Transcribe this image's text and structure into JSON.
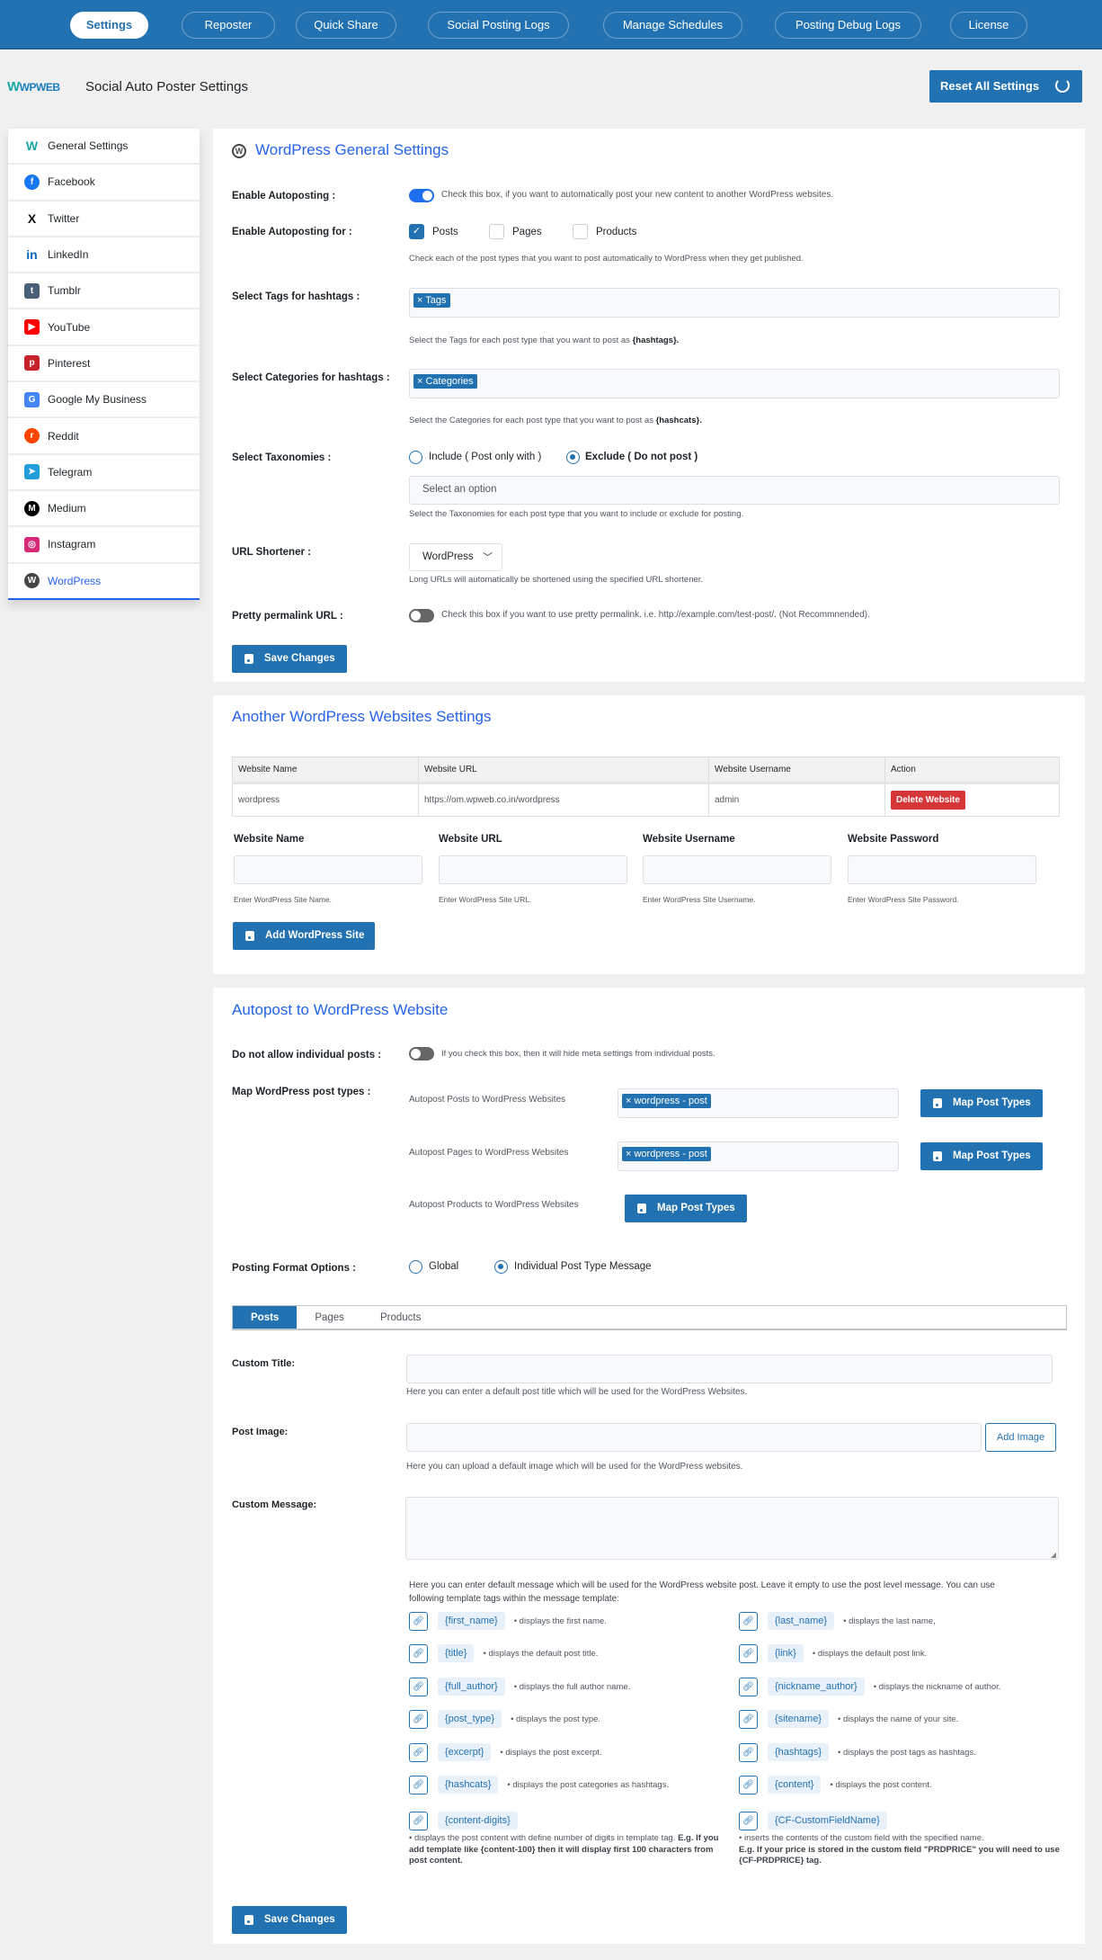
{
  "topnav": {
    "items": [
      "Settings",
      "Reposter",
      "Quick Share",
      "Social Posting Logs",
      "Manage Schedules",
      "Posting Debug Logs",
      "License"
    ],
    "active": "Settings"
  },
  "header": {
    "logo_text": "WPWEB",
    "title": "Social Auto Poster Settings",
    "reset_label": "Reset All Settings"
  },
  "sidebar": {
    "items": [
      {
        "label": "General Settings",
        "icon": "wpweb-logo-icon",
        "color": "#19a7a5",
        "glyph": "W"
      },
      {
        "label": "Facebook",
        "icon": "facebook-icon",
        "color": "#1877f2",
        "glyph": "f"
      },
      {
        "label": "Twitter",
        "icon": "x-twitter-icon",
        "color": "#111111",
        "glyph": "X"
      },
      {
        "label": "LinkedIn",
        "icon": "linkedin-icon",
        "color": "#0a66c2",
        "glyph": "in"
      },
      {
        "label": "Tumblr",
        "icon": "tumblr-icon",
        "color": "#4a6079",
        "glyph": "t"
      },
      {
        "label": "YouTube",
        "icon": "youtube-icon",
        "color": "#ff0000",
        "glyph": "▶"
      },
      {
        "label": "Pinterest",
        "icon": "pinterest-icon",
        "color": "#c8232c",
        "glyph": "p"
      },
      {
        "label": "Google My Business",
        "icon": "google-my-business-icon",
        "color": "#4285f4",
        "glyph": "G"
      },
      {
        "label": "Reddit",
        "icon": "reddit-icon",
        "color": "#ff4500",
        "glyph": "r"
      },
      {
        "label": "Telegram",
        "icon": "telegram-icon",
        "color": "#229ed9",
        "glyph": "➤"
      },
      {
        "label": "Medium",
        "icon": "medium-icon",
        "color": "#000000",
        "glyph": "M"
      },
      {
        "label": "Instagram",
        "icon": "instagram-icon",
        "color": "#d62976",
        "glyph": "◎"
      },
      {
        "label": "WordPress",
        "icon": "wordpress-icon",
        "color": "#464646",
        "glyph": "W"
      }
    ],
    "active": "WordPress"
  },
  "general": {
    "title": "WordPress General Settings",
    "enable_label": "Enable Autoposting :",
    "enable_on": true,
    "enable_desc": "Check this box, if you want to automatically post your new content to another WordPress websites.",
    "enable_for_label": "Enable Autoposting for :",
    "post_types": [
      {
        "label": "Posts",
        "checked": true
      },
      {
        "label": "Pages",
        "checked": false
      },
      {
        "label": "Products",
        "checked": false
      }
    ],
    "enable_for_help": "Check each of the post types that you want to post automatically to WordPress when they get published.",
    "tags_label": "Select Tags for hashtags :",
    "tags_chip": "Tags",
    "tags_help": "Select the Tags for each post type that you want to post as ",
    "tags_help_bold": "{hashtags}.",
    "cats_label": "Select Categories for hashtags :",
    "cats_chip": "Categories",
    "cats_help": "Select the Categories for each post type that you want to post as ",
    "cats_help_bold": "{hashcats}.",
    "tax_label": "Select Taxonomies :",
    "tax_include": "Include ( Post only with )",
    "tax_exclude": "Exclude ( Do not post )",
    "tax_selected": "exclude",
    "tax_placeholder": "Select an option",
    "tax_help": "Select the Taxonomies for each post type that you want to include or exclude for posting.",
    "url_label": "URL Shortener :",
    "url_value": "WordPress",
    "url_help": "Long URLs will automatically be shortened using the specified URL shortener.",
    "pretty_label": "Pretty permalink URL :",
    "pretty_on": false,
    "pretty_desc": "Check this box if you want to use pretty permalink. i.e. http://example.com/test-post/. (Not Recommnended).",
    "save_label": "Save Changes"
  },
  "sites": {
    "title": "Another WordPress Websites Settings",
    "columns": [
      "Website Name",
      "Website URL",
      "Website Username",
      "Action"
    ],
    "rows": [
      {
        "name": "wordpress",
        "url": "https://om.wpweb.co.in/wordpress",
        "username": "admin",
        "action": "Delete Website"
      }
    ],
    "fields": [
      {
        "label": "Website Name",
        "help": "Enter WordPress Site Name.",
        "value": ""
      },
      {
        "label": "Website URL",
        "help": "Enter WordPress Site URL.",
        "value": ""
      },
      {
        "label": "Website Username",
        "help": "Enter WordPress Site Username.",
        "value": ""
      },
      {
        "label": "Website Password",
        "help": "Enter WordPress Site Password.",
        "value": ""
      }
    ],
    "add_label": "Add WordPress Site"
  },
  "autopost": {
    "title": "Autopost to WordPress Website",
    "noindiv_label": "Do not allow individual posts :",
    "noindiv_on": false,
    "noindiv_desc": "If you check this box, then it will hide meta settings from individual posts.",
    "map_label": "Map WordPress post types :",
    "map_rows": [
      {
        "label": "Autopost Posts to WordPress Websites",
        "chip": "wordpress - post"
      },
      {
        "label": "Autopost Pages to WordPress Websites",
        "chip": "wordpress - post"
      },
      {
        "label": "Autopost Products to WordPress Websites"
      }
    ],
    "map_button": "Map Post Types",
    "format_label": "Posting Format Options :",
    "format_global": "Global",
    "format_individual": "Individual Post Type Message",
    "format_selected": "individual",
    "tabs": [
      "Posts",
      "Pages",
      "Products"
    ],
    "active_tab": "Posts",
    "custom_title_label": "Custom Title:",
    "custom_title_value": "",
    "custom_title_help": "Here you can enter a default post title which will be used for the WordPress Websites.",
    "post_image_label": "Post Image:",
    "post_image_value": "",
    "add_image": "Add Image",
    "post_image_help": "Here you can upload a default image which will be used for the WordPress websites.",
    "custom_message_label": "Custom Message:",
    "custom_message_value": "",
    "message_help_1": "Here you can enter default message which will be used for the WordPress website post. Leave it empty to use the post level message. You can use",
    "message_help_2": "following template tags within the message template:",
    "tags_left": [
      {
        "tag": "{first_name}",
        "desc": "displays the first name."
      },
      {
        "tag": "{title}",
        "desc": "displays the default post title."
      },
      {
        "tag": "{full_author}",
        "desc": "displays the full author name."
      },
      {
        "tag": "{post_type}",
        "desc": "displays the post type."
      },
      {
        "tag": "{excerpt}",
        "desc": "displays the post excerpt."
      },
      {
        "tag": "{hashcats}",
        "desc": "displays the post categories as hashtags."
      },
      {
        "tag": "{content-digits}"
      }
    ],
    "tags_right": [
      {
        "tag": "{last_name}",
        "desc": "displays the last name,"
      },
      {
        "tag": "{link}",
        "desc": "displays the default post link."
      },
      {
        "tag": "{nickname_author}",
        "desc": "displays the nickname of author."
      },
      {
        "tag": "{sitename}",
        "desc": "displays the name of your site."
      },
      {
        "tag": "{hashtags}",
        "desc": "displays the post tags as hashtags."
      },
      {
        "tag": "{content}",
        "desc": "displays the post content."
      },
      {
        "tag": "{CF-CustomFieldName}"
      }
    ],
    "content_digits_desc": "displays the post content with define number of digits in template tag. ",
    "content_digits_bold": "E.g. If you add template like {content-100} then it will display first 100 characters from post content.",
    "cf_desc": "inserts the contents of the custom field with the specified name.",
    "cf_bold": "E.g. If your price is stored in the custom field \"PRDPRICE\" you will need to use {CF-PRDPRICE} tag.",
    "save_label": "Save Changes"
  },
  "colors": {
    "brand": "#2271b1",
    "title_blue": "#2563eb",
    "danger": "#d63638"
  }
}
